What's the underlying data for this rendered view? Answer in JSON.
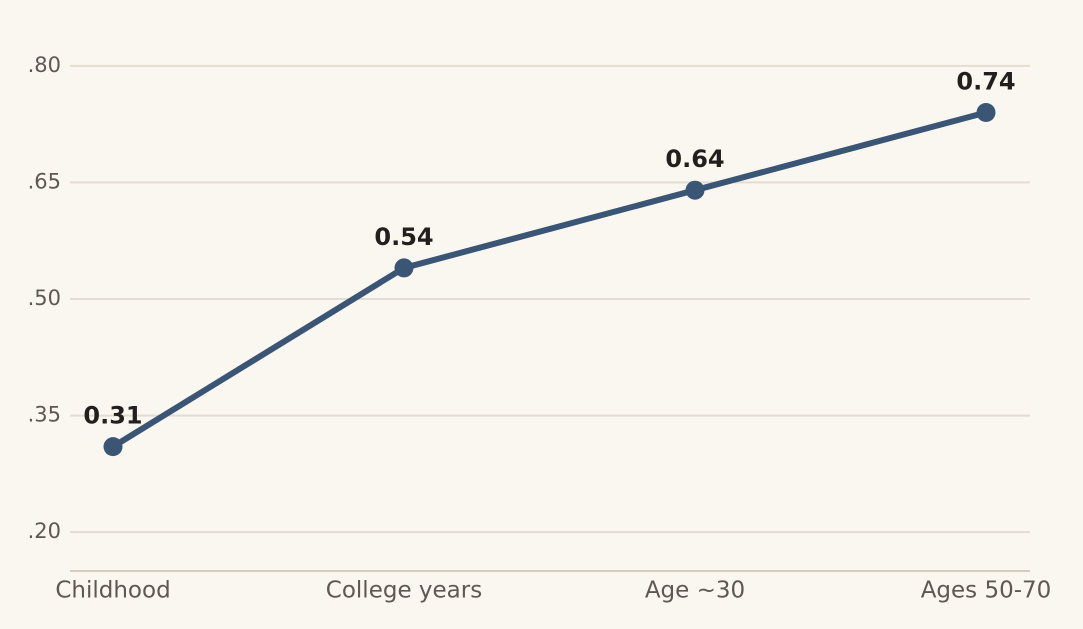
{
  "chart_data": {
    "type": "line",
    "categories": [
      "Childhood",
      "College years",
      "Age ~30",
      "Ages 50-70"
    ],
    "values": [
      0.31,
      0.54,
      0.64,
      0.74
    ],
    "color": "#3b5575",
    "ylim": [
      0.15,
      0.85
    ],
    "yticks": [
      {
        "value": 0.2,
        "label": ".20"
      },
      {
        "value": 0.35,
        "label": ".35"
      },
      {
        "value": 0.5,
        "label": ".50"
      },
      {
        "value": 0.65,
        "label": ".65"
      },
      {
        "value": 0.8,
        "label": ".80"
      }
    ],
    "grid": true
  }
}
